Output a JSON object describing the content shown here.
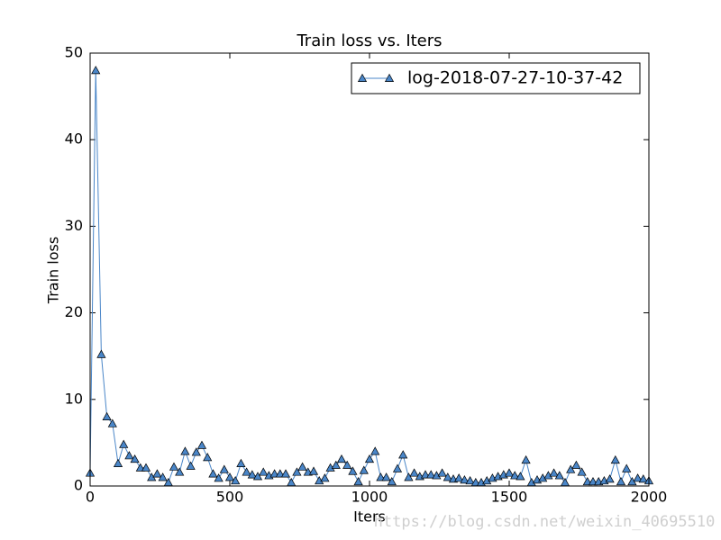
{
  "chart_data": {
    "type": "line",
    "title": "Train loss  vs. Iters",
    "x_label": "Iters",
    "y_label": "Train loss",
    "x": [
      0,
      20,
      40,
      60,
      80,
      100,
      120,
      140,
      160,
      180,
      200,
      220,
      240,
      260,
      280,
      300,
      320,
      340,
      360,
      380,
      400,
      420,
      440,
      460,
      480,
      500,
      520,
      540,
      560,
      580,
      600,
      620,
      640,
      660,
      680,
      700,
      720,
      740,
      760,
      780,
      800,
      820,
      840,
      860,
      880,
      900,
      920,
      940,
      960,
      980,
      1000,
      1020,
      1040,
      1060,
      1080,
      1100,
      1120,
      1140,
      1160,
      1180,
      1200,
      1220,
      1240,
      1260,
      1280,
      1300,
      1320,
      1340,
      1360,
      1380,
      1400,
      1420,
      1440,
      1460,
      1480,
      1500,
      1520,
      1540,
      1560,
      1580,
      1600,
      1620,
      1640,
      1660,
      1680,
      1700,
      1720,
      1740,
      1760,
      1780,
      1800,
      1820,
      1840,
      1860,
      1880,
      1900,
      1920,
      1940,
      1960,
      1980,
      2000
    ],
    "series": [
      {
        "name": "log-2018-07-27-10-37-42",
        "color": "#4a86c8",
        "marker": "triangle",
        "values": [
          1.5,
          48,
          15.2,
          8,
          7.2,
          2.6,
          4.8,
          3.5,
          3.1,
          2.1,
          2.1,
          1.0,
          1.4,
          1.0,
          0.4,
          2.2,
          1.6,
          4.0,
          2.3,
          3.9,
          4.7,
          3.3,
          1.4,
          0.9,
          1.9,
          1.0,
          0.6,
          2.6,
          1.6,
          1.3,
          1.1,
          1.6,
          1.2,
          1.4,
          1.4,
          1.4,
          0.4,
          1.6,
          2.2,
          1.6,
          1.7,
          0.6,
          0.9,
          2.1,
          2.4,
          3.1,
          2.4,
          1.7,
          0.5,
          1.8,
          3.1,
          4.0,
          1.0,
          1.0,
          0.5,
          2.0,
          3.6,
          1.0,
          1.5,
          1.1,
          1.3,
          1.3,
          1.2,
          1.5,
          1.0,
          0.8,
          0.9,
          0.7,
          0.6,
          0.4,
          0.4,
          0.6,
          0.9,
          1.1,
          1.3,
          1.5,
          1.2,
          1.1,
          3.0,
          0.4,
          0.7,
          0.9,
          1.2,
          1.5,
          1.2,
          0.4,
          1.9,
          2.4,
          1.6,
          0.5,
          0.5,
          0.5,
          0.6,
          0.8,
          3.0,
          0.5,
          2.0,
          0.5,
          0.9,
          0.8,
          0.6
        ]
      }
    ],
    "xlim": [
      0,
      2000
    ],
    "xticks": [
      0,
      500,
      1000,
      1500,
      2000
    ],
    "ylim": [
      0,
      50
    ],
    "yticks": [
      0,
      10,
      20,
      30,
      40,
      50
    ],
    "grid": false,
    "legend": "upper right",
    "watermark": "https://blog.csdn.net/weixin_40695510"
  }
}
